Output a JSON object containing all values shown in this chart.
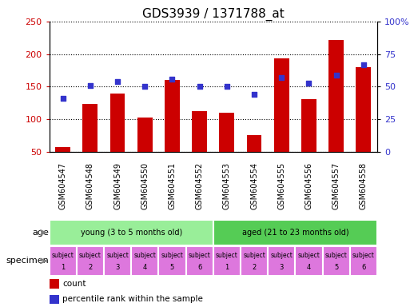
{
  "title": "GDS3939 / 1371788_at",
  "samples": [
    "GSM604547",
    "GSM604548",
    "GSM604549",
    "GSM604550",
    "GSM604551",
    "GSM604552",
    "GSM604553",
    "GSM604554",
    "GSM604555",
    "GSM604556",
    "GSM604557",
    "GSM604558"
  ],
  "counts": [
    57,
    124,
    139,
    103,
    160,
    113,
    110,
    76,
    194,
    131,
    222,
    180
  ],
  "percentiles": [
    41,
    51,
    54,
    50,
    56,
    50,
    50,
    44,
    57,
    53,
    59,
    67
  ],
  "ylim_left": [
    50,
    250
  ],
  "ylim_right": [
    0,
    100
  ],
  "yticks_left": [
    50,
    100,
    150,
    200,
    250
  ],
  "yticks_right": [
    0,
    25,
    50,
    75,
    100
  ],
  "bar_color": "#cc0000",
  "dot_color": "#3333cc",
  "age_groups": [
    {
      "label": "young (3 to 5 months old)",
      "start": 0,
      "end": 6,
      "color": "#99ee99"
    },
    {
      "label": "aged (21 to 23 months old)",
      "start": 6,
      "end": 12,
      "color": "#55cc55"
    }
  ],
  "specimen_color": "#dd77dd",
  "specimen_labels": [
    "subject\n1",
    "subject\n2",
    "subject\n3",
    "subject\n4",
    "subject\n5",
    "subject\n6",
    "subject\n1",
    "subject\n2",
    "subject\n3",
    "subject\n4",
    "subject\n5",
    "subject\n6"
  ],
  "xtick_bg": "#cccccc",
  "age_label": "age",
  "specimen_label": "specimen",
  "legend_count": "count",
  "legend_percentile": "percentile rank within the sample",
  "title_fontsize": 11,
  "tick_fontsize": 7,
  "label_fontsize": 8
}
